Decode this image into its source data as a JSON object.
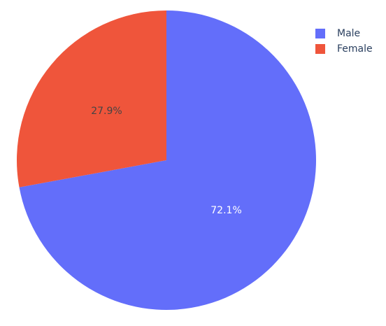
{
  "chart_data": {
    "type": "pie",
    "categories": [
      "Male",
      "Female"
    ],
    "values": [
      72.1,
      27.9
    ],
    "data_labels": [
      "72.1%",
      "27.9%"
    ],
    "colors": [
      "#636efa",
      "#ef553b"
    ],
    "label_colors": [
      "#ffffff",
      "#444444"
    ],
    "legend_placement": "top-right",
    "title": "",
    "direction": "clockwise",
    "start": "top"
  }
}
